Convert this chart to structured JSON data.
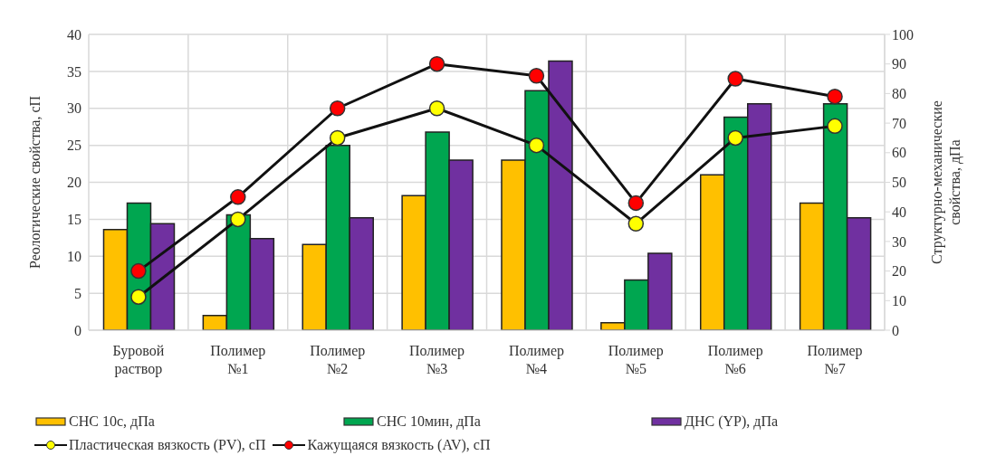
{
  "chart_data": {
    "type": "bar",
    "ylabel": "Реологические свойства, сП",
    "y2label": "Структурно-механические свойства, дПа",
    "categories": [
      "Буровой раствор",
      "Полимер №1",
      "Полимер №2",
      "Полимер №3",
      "Полимер №4",
      "Полимер №5",
      "Полимер №6",
      "Полимер №7"
    ],
    "series": [
      {
        "name": "СНС 10с, дПа",
        "axis": "y2",
        "color": "#ffc000",
        "values": [
          34,
          5,
          29,
          45.5,
          57.5,
          2.5,
          52.5,
          43
        ]
      },
      {
        "name": "СНС 10мин, дПа",
        "axis": "y2",
        "color": "#00a650",
        "values": [
          43,
          39,
          62.5,
          67,
          81,
          17,
          72,
          76.5
        ]
      },
      {
        "name": "ДНС (YP), дПа",
        "axis": "y2",
        "color": "#7030a0",
        "values": [
          36,
          31,
          38,
          57.5,
          91,
          26,
          76.5,
          38
        ]
      },
      {
        "name": "Пластическая вязкость (PV), сП",
        "type": "line",
        "color": "#ffff00",
        "values": [
          4.5,
          15,
          26,
          30,
          25,
          14.4,
          26,
          27.6
        ]
      },
      {
        "name": "Кажущаяся вязкость (AV), сП",
        "type": "line",
        "color": "#ff0000",
        "values": [
          8,
          18,
          30,
          36,
          34.4,
          17.2,
          34,
          31.6
        ]
      }
    ],
    "ylim": [
      0,
      40
    ],
    "yticks": [
      0,
      5,
      10,
      15,
      20,
      25,
      30,
      35,
      40
    ],
    "y2lim": [
      0,
      100
    ],
    "y2ticks": [
      0,
      10,
      20,
      30,
      40,
      50,
      60,
      70,
      80,
      90,
      100
    ],
    "grid": true,
    "legend": "bottom",
    "marker": "circle",
    "line_style": "solid"
  }
}
